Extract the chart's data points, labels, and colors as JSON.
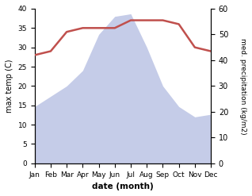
{
  "months": [
    "Jan",
    "Feb",
    "Mar",
    "Apr",
    "May",
    "Jun",
    "Jul",
    "Aug",
    "Sep",
    "Oct",
    "Nov",
    "Dec"
  ],
  "temperature": [
    28,
    29,
    34,
    35,
    35,
    35,
    37,
    37,
    37,
    36,
    30,
    29
  ],
  "precipitation": [
    22,
    26,
    30,
    36,
    50,
    57,
    58,
    45,
    30,
    22,
    18,
    19
  ],
  "temp_color": "#c0504d",
  "precip_fill_color": "#c5cce8",
  "ylabel_left": "max temp (C)",
  "ylabel_right": "med. precipitation (kg/m2)",
  "xlabel": "date (month)",
  "ylim_left": [
    0,
    40
  ],
  "ylim_right": [
    0,
    60
  ],
  "figsize": [
    3.18,
    2.47
  ],
  "dpi": 100
}
